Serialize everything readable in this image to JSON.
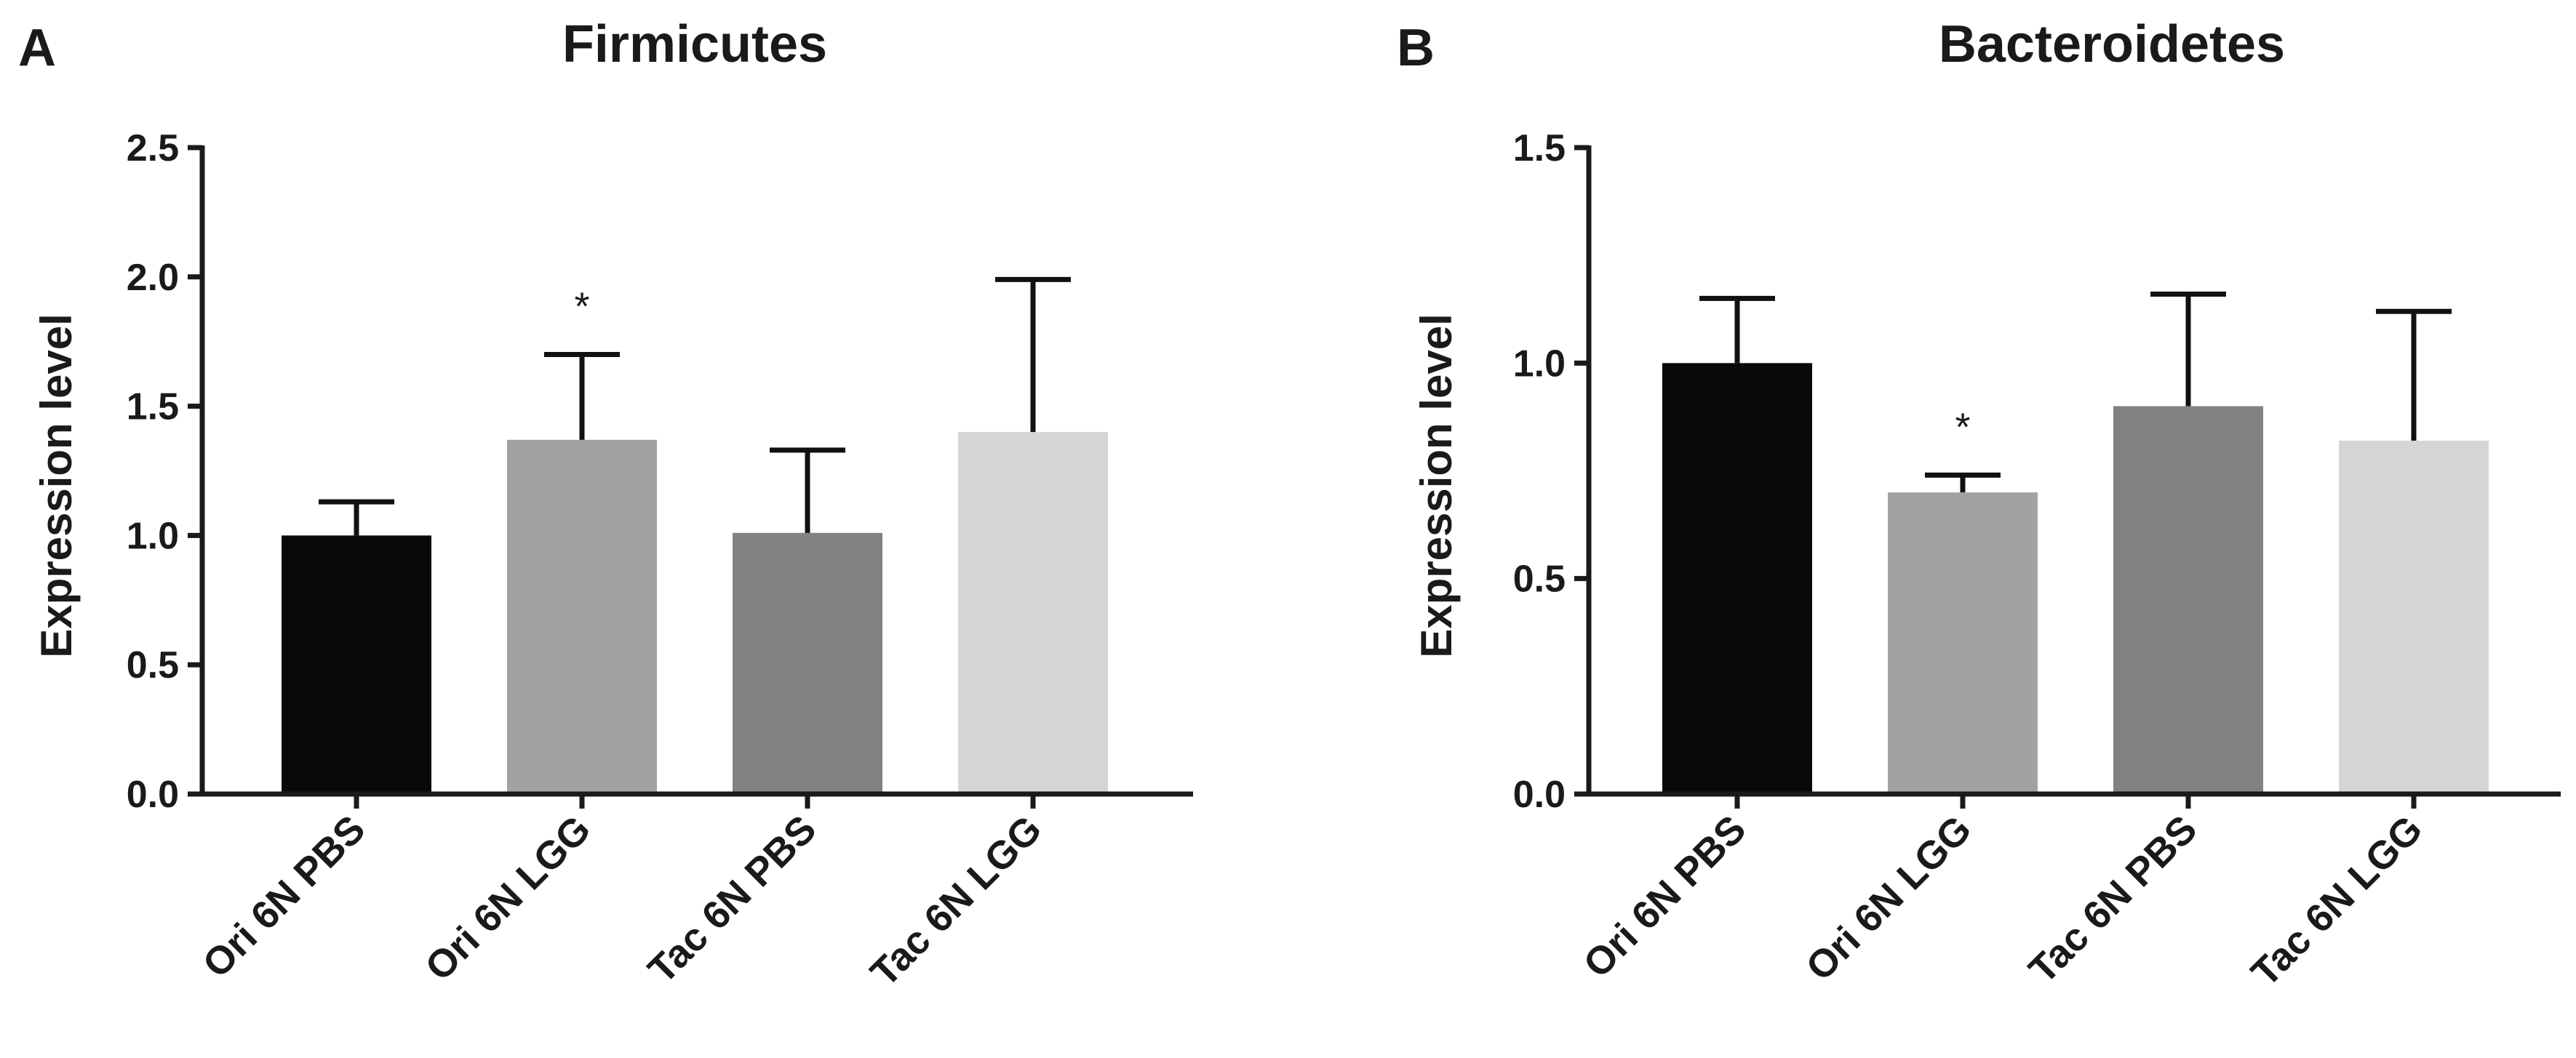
{
  "chart_data": [
    {
      "type": "bar",
      "panel": "A",
      "title": "Firmicutes",
      "xlabel": "",
      "ylabel": "Expression level",
      "ylim": [
        0,
        2.5
      ],
      "yticks": [
        0.0,
        0.5,
        1.0,
        1.5,
        2.0,
        2.5
      ],
      "yticklabels": [
        "0.0",
        "0.5",
        "1.0",
        "1.5",
        "2.0",
        "2.5"
      ],
      "categories": [
        "Ori 6N PBS",
        "Ori 6N LGG",
        "Tac 6N PBS",
        "Tac 6N LGG"
      ],
      "values": [
        1.0,
        1.37,
        1.01,
        1.4
      ],
      "errors": [
        0.13,
        0.33,
        0.32,
        0.59
      ],
      "colors": [
        "#080a09",
        "#a1a2a4",
        "#828282",
        "#d4d6d5"
      ],
      "annotations": [
        "",
        "*",
        "",
        ""
      ]
    },
    {
      "type": "bar",
      "panel": "B",
      "title": "Bacteroidetes",
      "xlabel": "",
      "ylabel": "Expression level",
      "ylim": [
        0,
        1.5
      ],
      "yticks": [
        0.0,
        0.5,
        1.0,
        1.5
      ],
      "yticklabels": [
        "0.0",
        "0.5",
        "1.0",
        "1.5"
      ],
      "categories": [
        "Ori 6N PBS",
        "Ori 6N LGG",
        "Tac 6N PBS",
        "Tac 6N LGG"
      ],
      "values": [
        1.0,
        0.7,
        0.9,
        0.82
      ],
      "errors": [
        0.15,
        0.04,
        0.26,
        0.3
      ],
      "colors": [
        "#080a09",
        "#a1a2a4",
        "#828282",
        "#d4d6d5"
      ],
      "annotations": [
        "",
        "*",
        "",
        ""
      ]
    }
  ]
}
